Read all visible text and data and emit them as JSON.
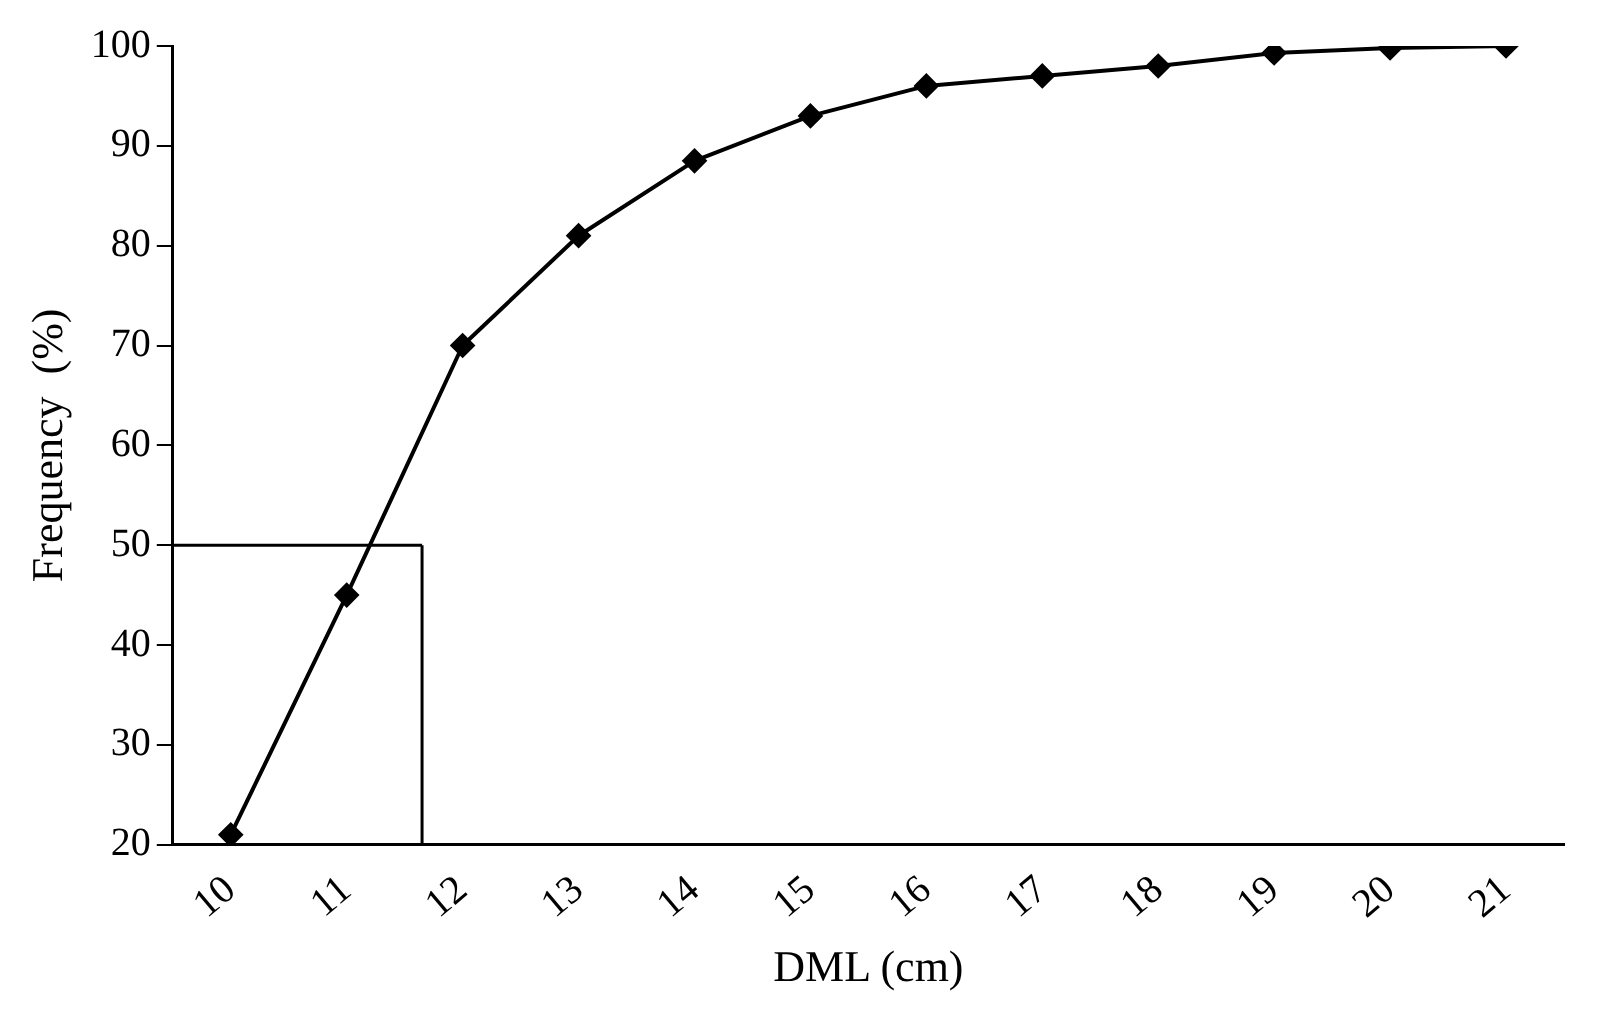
{
  "chart_data": {
    "type": "line",
    "xlabel": "DML (cm)",
    "ylabel": "Frequency  (%)",
    "x": [
      10,
      11,
      12,
      13,
      14,
      15,
      16,
      17,
      18,
      19,
      20,
      21
    ],
    "series": [
      {
        "color": "#000000",
        "values": [
          21,
          45,
          70,
          81,
          88.5,
          93,
          96,
          97,
          98,
          99.3,
          99.8,
          100
        ]
      }
    ],
    "xlim": [
      9.5,
      21.5
    ],
    "xticks": [
      10,
      11,
      12,
      13,
      14,
      15,
      16,
      17,
      18,
      19,
      20,
      21
    ],
    "ylim": [
      20,
      100
    ],
    "yticks": [
      20,
      30,
      40,
      50,
      60,
      70,
      80,
      90,
      100
    ],
    "ref_lines": [
      {
        "axis": "y",
        "value": 50,
        "color": "#000000"
      },
      {
        "axis": "x",
        "value": 11.65,
        "color": "#000000"
      }
    ],
    "grid": false,
    "legend": false,
    "marker": "diamond",
    "line_style": "solid"
  }
}
